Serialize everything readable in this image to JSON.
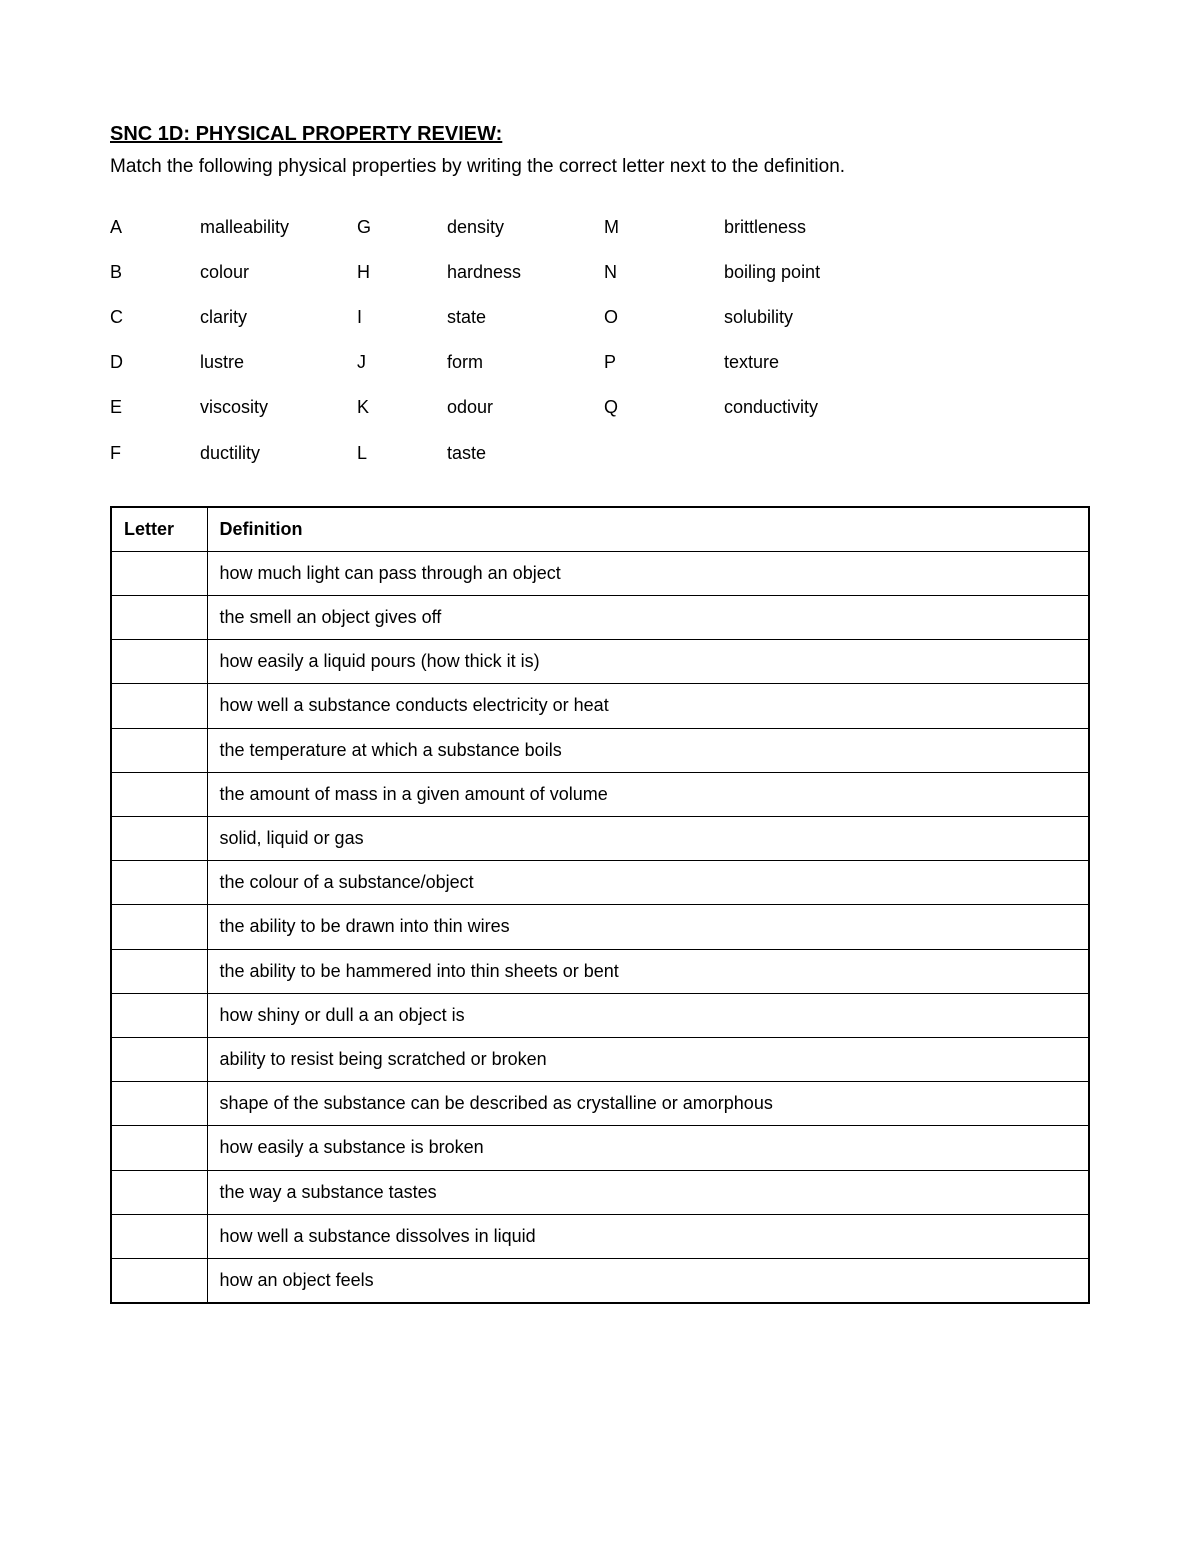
{
  "title": "SNC 1D: PHYSICAL PROPERTY REVIEW:",
  "instructions": "Match the following physical properties by writing the correct letter next to the definition.",
  "properties": {
    "row0": {
      "c0l": "A",
      "c0t": "malleability",
      "c1l": "G",
      "c1t": "density",
      "c2l": "M",
      "c2t": "brittleness"
    },
    "row1": {
      "c0l": "B",
      "c0t": "colour",
      "c1l": "H",
      "c1t": "hardness",
      "c2l": "N",
      "c2t": "boiling point"
    },
    "row2": {
      "c0l": "C",
      "c0t": "clarity",
      "c1l": "I",
      "c1t": "state",
      "c2l": "O",
      "c2t": "solubility"
    },
    "row3": {
      "c0l": "D",
      "c0t": "lustre",
      "c1l": "J",
      "c1t": "form",
      "c2l": "P",
      "c2t": "texture"
    },
    "row4": {
      "c0l": "E",
      "c0t": "viscosity",
      "c1l": "K",
      "c1t": "odour",
      "c2l": "Q",
      "c2t": "conductivity"
    },
    "row5": {
      "c0l": "F",
      "c0t": "ductility",
      "c1l": "L",
      "c1t": "taste",
      "c2l": "",
      "c2t": ""
    }
  },
  "table": {
    "header_letter": "Letter",
    "header_definition": "Definition",
    "rows": {
      "r0": {
        "letter": "",
        "def": "how much light can pass through an object"
      },
      "r1": {
        "letter": "",
        "def": "the smell an object gives off"
      },
      "r2": {
        "letter": "",
        "def": "how easily a liquid pours (how thick it is)"
      },
      "r3": {
        "letter": "",
        "def": "how well a substance conducts electricity or heat"
      },
      "r4": {
        "letter": "",
        "def": "the temperature at which a substance boils"
      },
      "r5": {
        "letter": "",
        "def": "the amount of mass in a given amount of volume"
      },
      "r6": {
        "letter": "",
        "def": "solid, liquid or gas"
      },
      "r7": {
        "letter": "",
        "def": "the colour of a substance/object"
      },
      "r8": {
        "letter": "",
        "def": "the ability to be drawn into thin wires"
      },
      "r9": {
        "letter": "",
        "def": "the ability to be hammered into thin sheets or bent"
      },
      "r10": {
        "letter": "",
        "def": "how shiny or dull a an object is"
      },
      "r11": {
        "letter": "",
        "def": "ability to resist being scratched or broken"
      },
      "r12": {
        "letter": "",
        "def": "shape of the substance can be described as crystalline or amorphous"
      },
      "r13": {
        "letter": "",
        "def": "how easily a substance is broken"
      },
      "r14": {
        "letter": "",
        "def": "the way a substance tastes"
      },
      "r15": {
        "letter": "",
        "def": "how well a substance dissolves in liquid"
      },
      "r16": {
        "letter": "",
        "def": "how an object feels"
      }
    }
  }
}
